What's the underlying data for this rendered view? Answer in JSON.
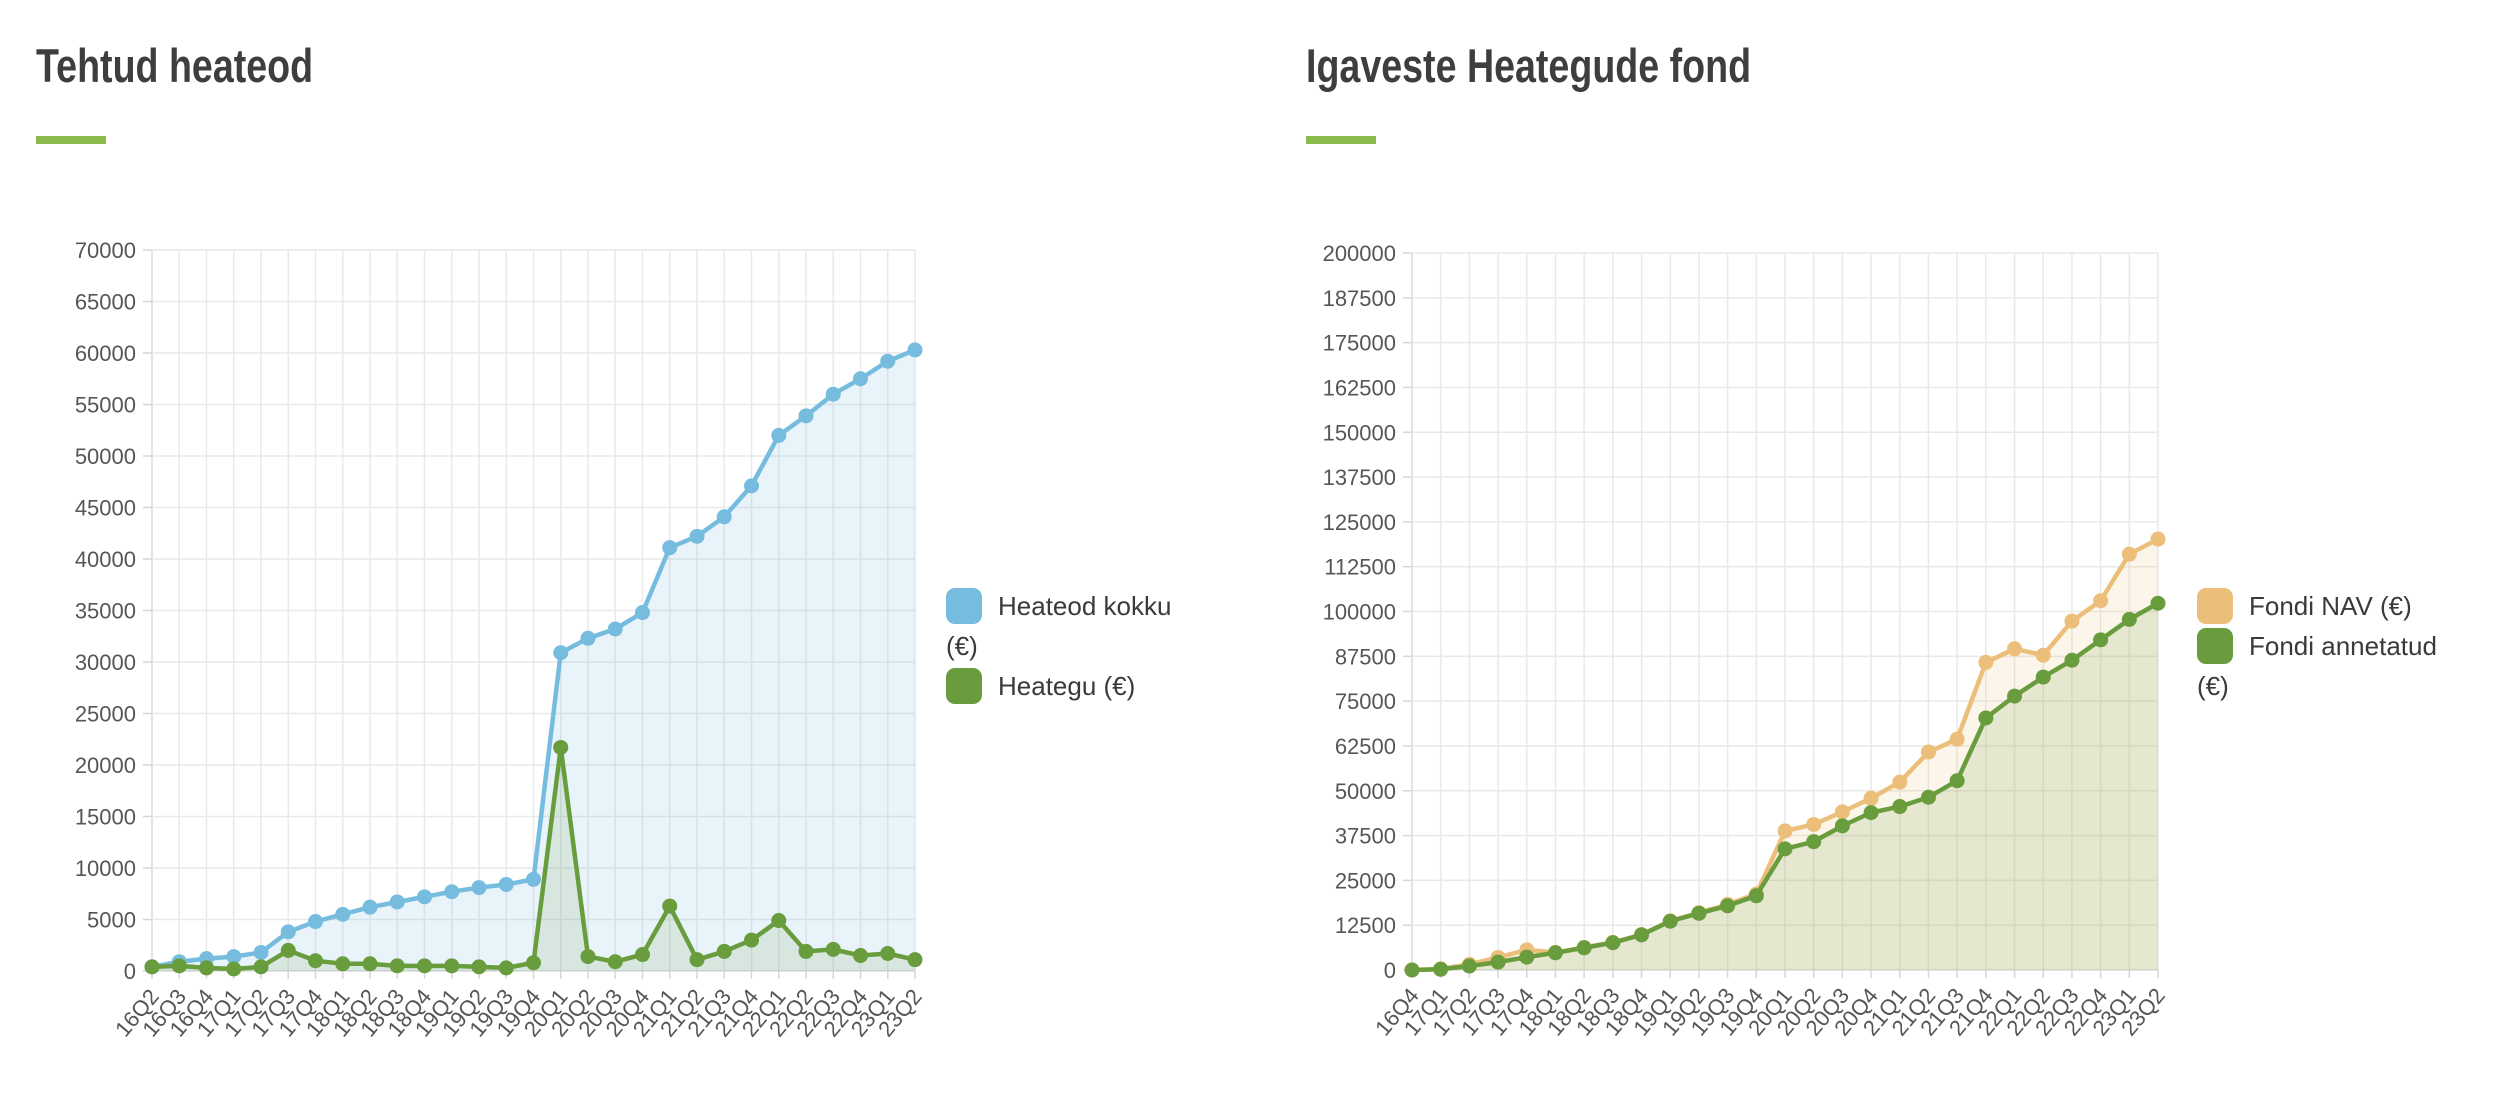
{
  "chart_data": [
    {
      "type": "line",
      "title": "Tehtud heateod",
      "accent": "#8aba4e",
      "grid": true,
      "legend_position": "right",
      "ylim": [
        0,
        70000
      ],
      "y_step": 5000,
      "categories": [
        "16Q2",
        "16Q3",
        "16Q4",
        "17Q1",
        "17Q2",
        "17Q3",
        "17Q4",
        "18Q1",
        "18Q2",
        "18Q3",
        "18Q4",
        "19Q1",
        "19Q2",
        "19Q3",
        "19Q4",
        "20Q1",
        "20Q2",
        "20Q3",
        "20Q4",
        "21Q1",
        "21Q2",
        "21Q3",
        "21Q4",
        "22Q1",
        "22Q2",
        "22Q3",
        "22Q4",
        "23Q1",
        "23Q2"
      ],
      "series": [
        {
          "name": "Heateod kokku (€)",
          "color": "#75bcde",
          "fill": "rgba(117,188,222,0.16)",
          "values": [
            400,
            900,
            1200,
            1400,
            1800,
            3800,
            4800,
            5500,
            6200,
            6700,
            7200,
            7700,
            8100,
            8400,
            8900,
            30900,
            32300,
            33200,
            34800,
            41100,
            42200,
            44100,
            47100,
            52000,
            53900,
            56000,
            57500,
            59200,
            60300
          ]
        },
        {
          "name": "Heategu (€)",
          "color": "#689c3d",
          "fill": "rgba(104,156,61,0.14)",
          "values": [
            400,
            500,
            300,
            200,
            400,
            2000,
            1000,
            700,
            700,
            500,
            500,
            500,
            400,
            300,
            800,
            21700,
            1400,
            900,
            1600,
            6300,
            1100,
            1900,
            3000,
            4900,
            1900,
            2100,
            1500,
            1700,
            1100
          ]
        }
      ]
    },
    {
      "type": "line",
      "title": "Igaveste Heategude fond",
      "accent": "#8aba4e",
      "grid": true,
      "legend_position": "right",
      "ylim": [
        0,
        200000
      ],
      "y_step": 12500,
      "categories": [
        "16Q4",
        "17Q1",
        "17Q2",
        "17Q3",
        "17Q4",
        "18Q1",
        "18Q2",
        "18Q3",
        "18Q4",
        "19Q1",
        "19Q2",
        "19Q3",
        "19Q4",
        "20Q1",
        "20Q2",
        "20Q3",
        "20Q4",
        "21Q1",
        "21Q2",
        "21Q3",
        "21Q4",
        "22Q1",
        "22Q2",
        "22Q3",
        "22Q4",
        "23Q1",
        "23Q2"
      ],
      "series": [
        {
          "name": "Fondi NAV (€)",
          "color": "#ebbf79",
          "fill": "rgba(235,191,121,0.16)",
          "values": [
            0,
            300,
            1600,
            3500,
            5600,
            4900,
            6300,
            7700,
            9900,
            13700,
            16000,
            18300,
            21200,
            38800,
            40600,
            44100,
            47900,
            52400,
            60800,
            64400,
            85800,
            89600,
            87800,
            97300,
            103000,
            116000,
            120200
          ]
        },
        {
          "name": "Fondi annetatud (€)",
          "color": "#689c3d",
          "fill": "rgba(104,156,61,0.15)",
          "values": [
            0,
            200,
            1100,
            2200,
            3600,
            4800,
            6200,
            7600,
            9800,
            13600,
            15800,
            17900,
            20700,
            33800,
            35800,
            40200,
            43900,
            45600,
            48200,
            52800,
            70300,
            76400,
            81700,
            86400,
            92100,
            97800,
            102300
          ]
        }
      ]
    }
  ]
}
